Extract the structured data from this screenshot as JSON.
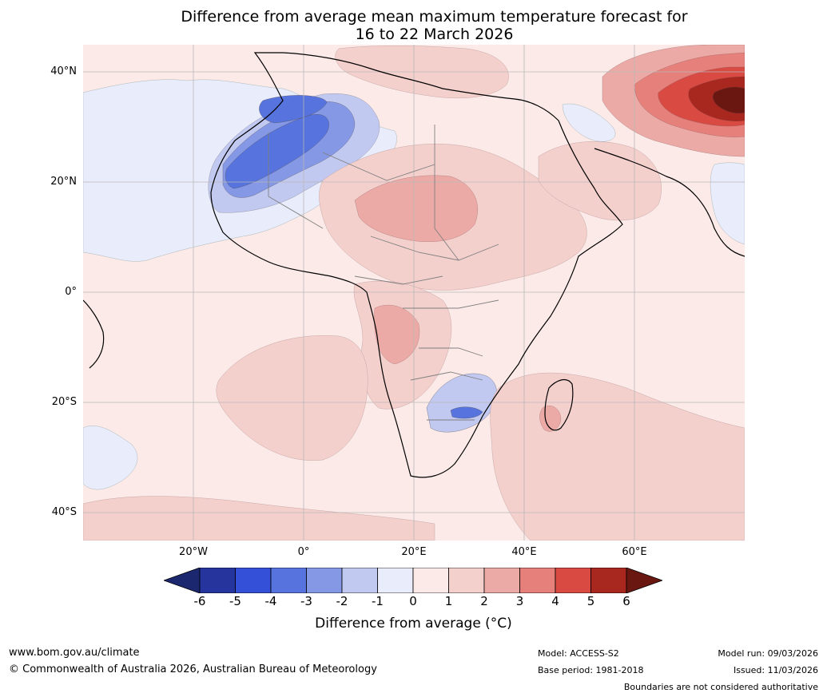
{
  "title": {
    "line1": "Difference from average mean maximum temperature forecast for",
    "line2": "16 to 22 March 2026"
  },
  "axes": {
    "lat_labels": [
      {
        "text": "40°N",
        "lat": 40
      },
      {
        "text": "20°N",
        "lat": 20
      },
      {
        "text": "0°",
        "lat": 0
      },
      {
        "text": "20°S",
        "lat": -20
      },
      {
        "text": "40°S",
        "lat": -40
      }
    ],
    "lon_labels": [
      {
        "text": "20°W",
        "lon": -20
      },
      {
        "text": "0°",
        "lon": 0
      },
      {
        "text": "20°E",
        "lon": 20
      },
      {
        "text": "40°E",
        "lon": 40
      },
      {
        "text": "60°E",
        "lon": 60
      }
    ],
    "lon_range": [
      -40,
      80
    ],
    "lat_range": [
      -45,
      45
    ]
  },
  "colorbar": {
    "ticks": [
      "-6",
      "-5",
      "-4",
      "-3",
      "-2",
      "-1",
      "0",
      "1",
      "2",
      "3",
      "4",
      "5",
      "6"
    ],
    "colors": [
      "#26359e",
      "#3450d8",
      "#5673de",
      "#8598e5",
      "#c2c9f0",
      "#e9ecfb",
      "#fbeae8",
      "#f4d0cd",
      "#ecaaa6",
      "#e5807b",
      "#d94a43",
      "#a8271f"
    ],
    "under_color": "#1b2870",
    "over_color": "#6a1712",
    "label": "Difference from average (°C)"
  },
  "footer": {
    "website": "www.bom.gov.au/climate",
    "copyright": "© Commonwealth of Australia 2026, Australian Bureau of Meteorology",
    "model": "Model: ACCESS-S2",
    "base_period": "Base period: 1981-2018",
    "model_run": "Model run: 09/03/2026",
    "issued": "Issued: 11/03/2026",
    "disclaimer": "Boundaries are not considered authoritative"
  }
}
